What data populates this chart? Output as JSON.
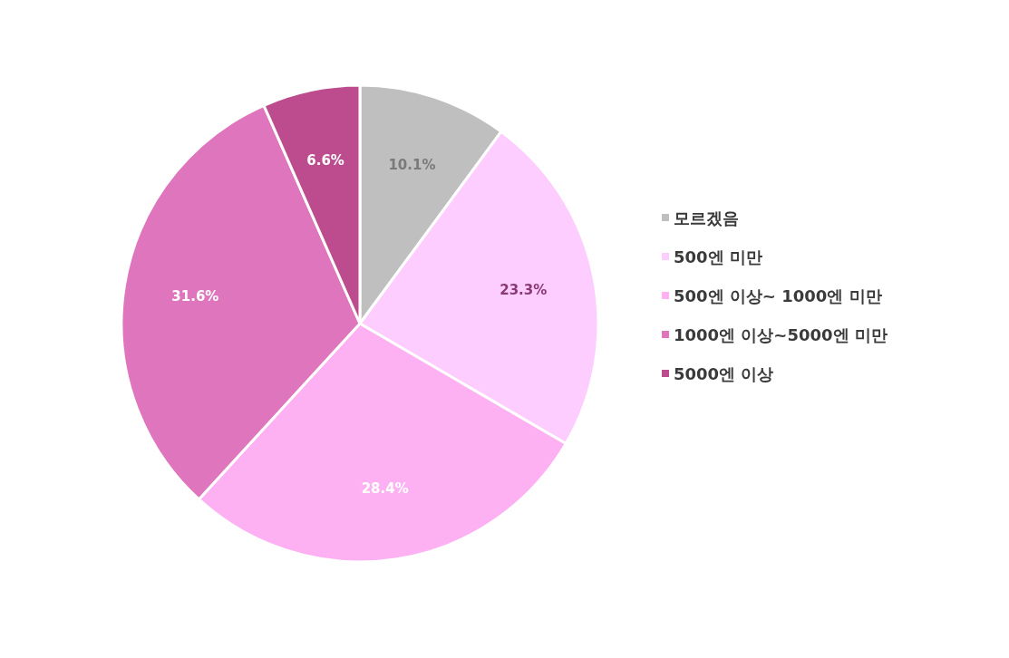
{
  "chart_data": {
    "type": "pie",
    "categories": [
      "모르겠음",
      "500엔 미만",
      "500엔 이상~ 1000엔 미만",
      "1000엔 이상~5000엔 미만",
      "5000엔 이상"
    ],
    "values": [
      10.1,
      23.3,
      28.4,
      31.6,
      6.6
    ],
    "colors": [
      "#bfbfbf",
      "#fecdff",
      "#fdb1f3",
      "#df76bd",
      "#bc4c8e"
    ],
    "value_labels": [
      "10.1%",
      "23.3%",
      "28.4%",
      "31.6%",
      "6.6%"
    ],
    "legend": "right"
  }
}
